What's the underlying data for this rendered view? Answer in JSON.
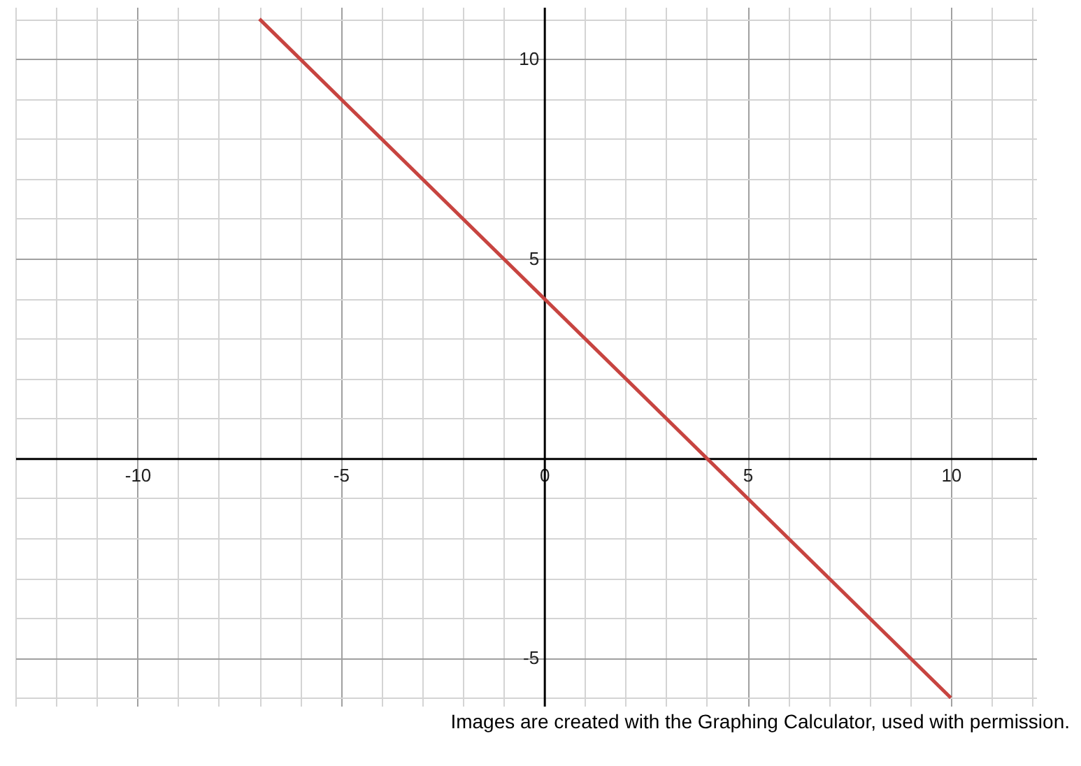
{
  "chart_data": {
    "type": "line",
    "x": [
      -7,
      10
    ],
    "series": [
      {
        "color": "#c74440",
        "values": [
          11,
          -6
        ]
      }
    ],
    "xlim": [
      -13,
      12.1
    ],
    "ylim": [
      -6.2,
      11.3
    ],
    "xticks": [
      {
        "value": -13,
        "label": null
      },
      {
        "value": -12,
        "label": null
      },
      {
        "value": -11,
        "label": null
      },
      -10,
      {
        "value": -9,
        "label": null
      },
      {
        "value": -8,
        "label": null
      },
      {
        "value": -7,
        "label": null
      },
      {
        "value": -6,
        "label": null
      },
      -5,
      {
        "value": -4,
        "label": null
      },
      {
        "value": -3,
        "label": null
      },
      {
        "value": -2,
        "label": null
      },
      {
        "value": -1,
        "label": null
      },
      0,
      {
        "value": 1,
        "label": null
      },
      {
        "value": 2,
        "label": null
      },
      {
        "value": 3,
        "label": null
      },
      {
        "value": 4,
        "label": null
      },
      5,
      {
        "value": 6,
        "label": null
      },
      {
        "value": 7,
        "label": null
      },
      {
        "value": 8,
        "label": null
      },
      {
        "value": 9,
        "label": null
      },
      10,
      {
        "value": 11,
        "label": null
      },
      {
        "value": 12,
        "label": null
      }
    ],
    "yticks": [
      {
        "value": -6,
        "label": null
      },
      -5,
      {
        "value": -4,
        "label": null
      },
      {
        "value": -3,
        "label": null
      },
      {
        "value": -2,
        "label": null
      },
      {
        "value": -1,
        "label": null
      },
      {
        "value": 0,
        "label": null
      },
      {
        "value": 1,
        "label": null
      },
      {
        "value": 2,
        "label": null
      },
      {
        "value": 3,
        "label": null
      },
      {
        "value": 4,
        "label": null
      },
      5,
      {
        "value": 6,
        "label": null
      },
      {
        "value": 7,
        "label": null
      },
      {
        "value": 8,
        "label": null
      },
      {
        "value": 9,
        "label": null
      },
      10,
      {
        "value": 11,
        "label": null
      }
    ],
    "grid": true,
    "line_style": "solid",
    "annotations": [
      "Images are created with the Graphing Calculator, used with permission."
    ]
  }
}
